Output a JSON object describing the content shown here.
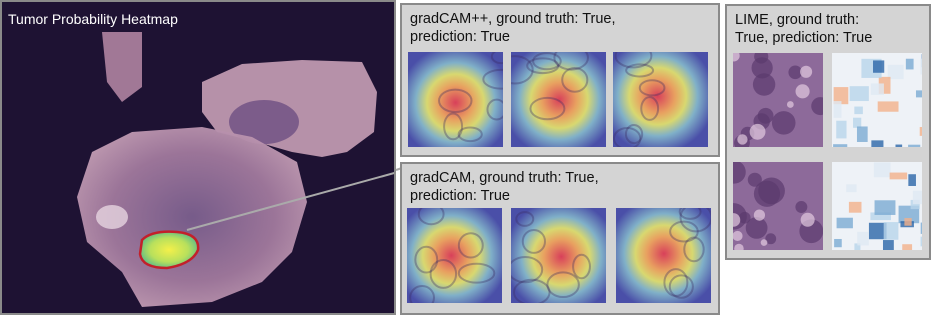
{
  "heatmap_panel": {
    "title": "Tumor Probability Heatmap"
  },
  "panels": [
    {
      "title_lines": [
        "gradCAM++, ground truth: True,",
        "prediction: True"
      ]
    },
    {
      "title_lines": [
        "gradCAM, ground truth: True,",
        "prediction: True"
      ]
    },
    {
      "title_lines": [
        "LIME, ground truth:",
        "True, prediction: True"
      ]
    }
  ]
}
